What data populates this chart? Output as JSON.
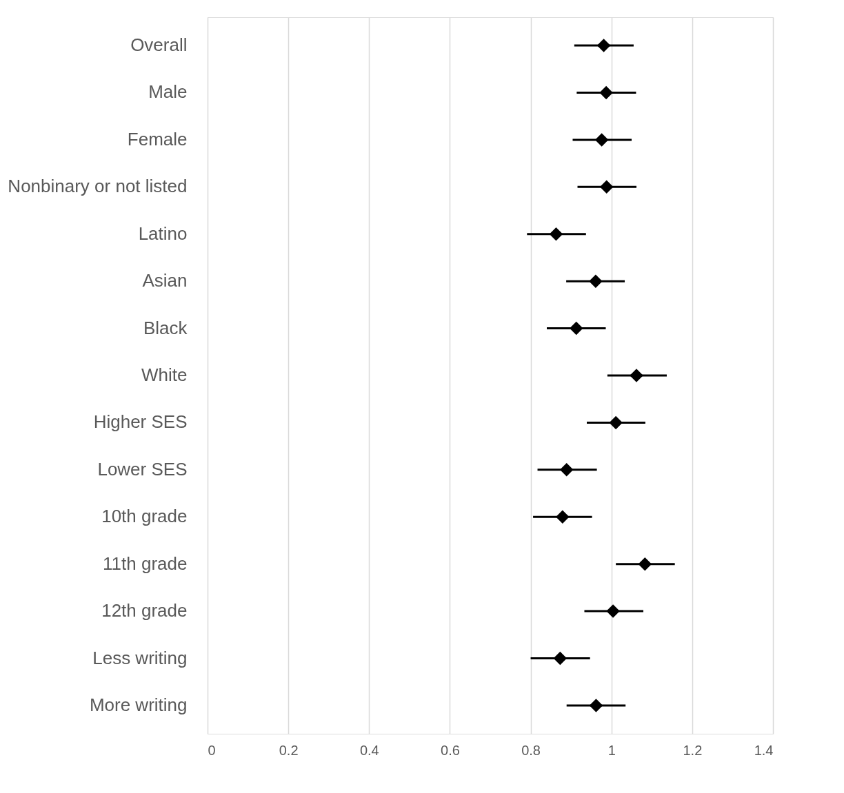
{
  "chart_data": {
    "type": "scatter",
    "orientation": "horizontal",
    "categories": [
      "Overall",
      "Male",
      "Female",
      "Nonbinary or not listed",
      "Latino",
      "Asian",
      "Black",
      "White",
      "Higher SES",
      "Lower SES",
      "10th grade",
      "11th grade",
      "12th grade",
      "Less writing",
      "More writing"
    ],
    "series": [
      {
        "color": "#000000",
        "values": [
          0.981,
          0.987,
          0.976,
          0.988,
          0.863,
          0.961,
          0.913,
          1.062,
          1.011,
          0.889,
          0.879,
          1.083,
          1.004,
          0.873,
          0.962
        ],
        "errors": [
          [
            0.908,
            1.055
          ],
          [
            0.914,
            1.061
          ],
          [
            0.904,
            1.05
          ],
          [
            0.916,
            1.062
          ],
          [
            0.791,
            0.937
          ],
          [
            0.888,
            1.033
          ],
          [
            0.84,
            0.986
          ],
          [
            0.99,
            1.137
          ],
          [
            0.939,
            1.084
          ],
          [
            0.817,
            0.964
          ],
          [
            0.806,
            0.952
          ],
          [
            1.011,
            1.157
          ],
          [
            0.933,
            1.079
          ],
          [
            0.8,
            0.947
          ],
          [
            0.889,
            1.035
          ]
        ]
      }
    ],
    "xlim": [
      0,
      1.4
    ],
    "xticks": [
      0,
      0.2,
      0.4,
      0.6,
      0.8,
      1,
      1.2,
      1.4
    ],
    "grid": "x",
    "marker": "diamond"
  }
}
